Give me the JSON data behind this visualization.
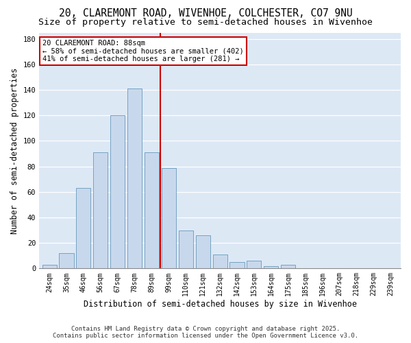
{
  "title_line1": "20, CLAREMONT ROAD, WIVENHOE, COLCHESTER, CO7 9NU",
  "title_line2": "Size of property relative to semi-detached houses in Wivenhoe",
  "xlabel": "Distribution of semi-detached houses by size in Wivenhoe",
  "ylabel": "Number of semi-detached properties",
  "tick_labels": [
    "24sqm",
    "35sqm",
    "46sqm",
    "56sqm",
    "67sqm",
    "78sqm",
    "89sqm",
    "99sqm",
    "110sqm",
    "121sqm",
    "132sqm",
    "142sqm",
    "153sqm",
    "164sqm",
    "175sqm",
    "185sqm",
    "196sqm",
    "207sqm",
    "218sqm",
    "229sqm",
    "239sqm"
  ],
  "bar_counts": [
    3,
    12,
    63,
    91,
    120,
    141,
    91,
    79,
    30,
    26,
    11,
    5,
    6,
    2,
    3,
    0,
    0,
    0,
    0,
    0,
    0
  ],
  "bar_color": "#c8d8ec",
  "bar_edge_color": "#6699bb",
  "vline_color": "#cc0000",
  "annotation_title": "20 CLAREMONT ROAD: 88sqm",
  "annotation_line1": "← 58% of semi-detached houses are smaller (402)",
  "annotation_line2": "41% of semi-detached houses are larger (281) →",
  "annotation_box_color": "#cc0000",
  "ylim": [
    0,
    185
  ],
  "yticks": [
    0,
    20,
    40,
    60,
    80,
    100,
    120,
    140,
    160,
    180
  ],
  "grid_color": "#ffffff",
  "background_color": "#dde8f5",
  "footer_line1": "Contains HM Land Registry data © Crown copyright and database right 2025.",
  "footer_line2": "Contains public sector information licensed under the Open Government Licence v3.0.",
  "title_fontsize": 10.5,
  "subtitle_fontsize": 9.5,
  "axis_label_fontsize": 8.5,
  "tick_fontsize": 7,
  "annotation_fontsize": 7.5,
  "footer_fontsize": 6.5
}
